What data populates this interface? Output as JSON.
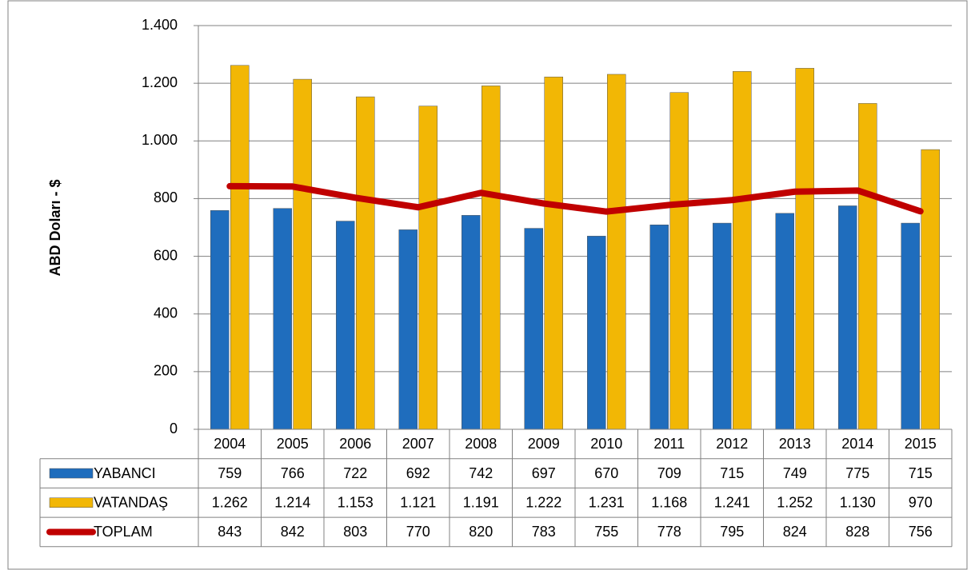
{
  "chart_data": {
    "type": "bar",
    "y_label": "ABD Doları - $",
    "categories": [
      "2004",
      "2005",
      "2006",
      "2007",
      "2008",
      "2009",
      "2010",
      "2011",
      "2012",
      "2013",
      "2014",
      "2015"
    ],
    "series": [
      {
        "name": "YABANCI",
        "type": "bar",
        "color": "#1f6dbd",
        "values": [
          759,
          766,
          722,
          692,
          742,
          697,
          670,
          709,
          715,
          749,
          775,
          715
        ]
      },
      {
        "name": "VATANDAŞ",
        "type": "bar",
        "color": "#f2b705",
        "values": [
          1262,
          1214,
          1153,
          1121,
          1191,
          1222,
          1231,
          1168,
          1241,
          1252,
          1130,
          970
        ],
        "value_labels": [
          "1.262",
          "1.214",
          "1.153",
          "1.121",
          "1.191",
          "1.222",
          "1.231",
          "1.168",
          "1.241",
          "1.252",
          "1.130",
          "970"
        ]
      },
      {
        "name": "TOPLAM",
        "type": "line",
        "color": "#c00000",
        "values": [
          843,
          842,
          803,
          770,
          820,
          783,
          755,
          778,
          795,
          824,
          828,
          756
        ]
      }
    ],
    "ylim": [
      0,
      1400
    ],
    "yticks": [
      0,
      200,
      400,
      600,
      800,
      {
        "value": 1000,
        "label": "1.000"
      },
      {
        "value": 1200,
        "label": "1.200"
      },
      {
        "value": 1400,
        "label": "1.400"
      }
    ],
    "grid": true
  }
}
